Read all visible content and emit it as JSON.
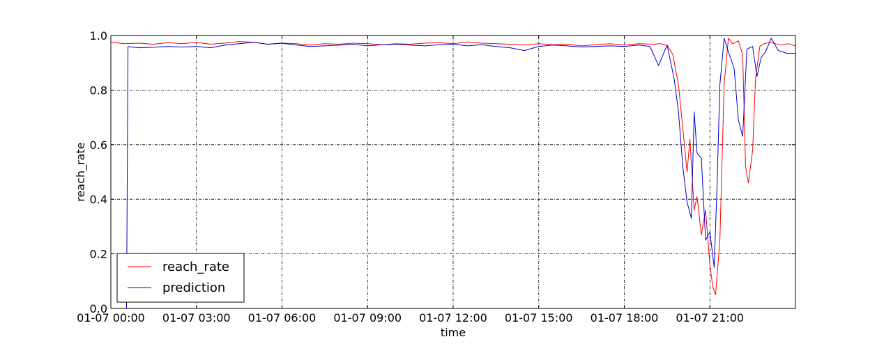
{
  "chart_data": {
    "type": "line",
    "title": "",
    "xlabel": "time",
    "ylabel": "reach_rate",
    "x_unit": "hours since 01-07 00:00",
    "xlim": [
      0,
      24
    ],
    "ylim": [
      0.0,
      1.0
    ],
    "grid": true,
    "legend_position": "lower-left",
    "x_ticks": [
      {
        "value": 0,
        "label": "01-07 00:00"
      },
      {
        "value": 3,
        "label": "01-07 03:00"
      },
      {
        "value": 6,
        "label": "01-07 06:00"
      },
      {
        "value": 9,
        "label": "01-07 09:00"
      },
      {
        "value": 12,
        "label": "01-07 12:00"
      },
      {
        "value": 15,
        "label": "01-07 15:00"
      },
      {
        "value": 18,
        "label": "01-07 18:00"
      },
      {
        "value": 21,
        "label": "01-07 21:00"
      }
    ],
    "y_ticks": [
      {
        "value": 0.0,
        "label": "0.0"
      },
      {
        "value": 0.2,
        "label": "0.2"
      },
      {
        "value": 0.4,
        "label": "0.4"
      },
      {
        "value": 0.6,
        "label": "0.6"
      },
      {
        "value": 0.8,
        "label": "0.8"
      },
      {
        "value": 1.0,
        "label": "1.0"
      }
    ],
    "series": [
      {
        "name": "reach_rate",
        "color": "#ff0000",
        "x": [
          0,
          0.5,
          1,
          1.5,
          2,
          2.5,
          3,
          3.5,
          4,
          4.5,
          5,
          5.5,
          6,
          6.5,
          7,
          7.5,
          8,
          8.5,
          9,
          9.5,
          10,
          10.5,
          11,
          11.5,
          12,
          12.5,
          13,
          13.5,
          14,
          14.5,
          15,
          15.5,
          16,
          16.5,
          17,
          17.5,
          18,
          18.5,
          19,
          19.25,
          19.5,
          19.7,
          19.9,
          20.05,
          20.2,
          20.3,
          20.45,
          20.55,
          20.7,
          20.85,
          21,
          21.1,
          21.2,
          21.35,
          21.5,
          21.65,
          21.8,
          22,
          22.15,
          22.25,
          22.35,
          22.5,
          22.6,
          22.75,
          22.9,
          23.1,
          23.3,
          23.5,
          23.75,
          24
        ],
        "values": [
          0.975,
          0.97,
          0.972,
          0.968,
          0.974,
          0.97,
          0.975,
          0.968,
          0.972,
          0.978,
          0.975,
          0.968,
          0.972,
          0.97,
          0.965,
          0.97,
          0.968,
          0.972,
          0.97,
          0.966,
          0.97,
          0.968,
          0.972,
          0.974,
          0.97,
          0.976,
          0.972,
          0.97,
          0.968,
          0.965,
          0.97,
          0.966,
          0.968,
          0.962,
          0.966,
          0.97,
          0.965,
          0.97,
          0.968,
          0.97,
          0.965,
          0.93,
          0.82,
          0.66,
          0.5,
          0.62,
          0.36,
          0.41,
          0.27,
          0.36,
          0.16,
          0.08,
          0.05,
          0.25,
          0.82,
          0.99,
          0.97,
          0.98,
          0.93,
          0.52,
          0.46,
          0.58,
          0.84,
          0.96,
          0.97,
          0.975,
          0.97,
          0.965,
          0.97,
          0.962
        ]
      },
      {
        "name": "prediction",
        "color": "#0000cc",
        "x": [
          0,
          0.55,
          0.6,
          0.7,
          1,
          1.5,
          2,
          2.5,
          3,
          3.5,
          4,
          4.5,
          5,
          5.5,
          6,
          6.5,
          7,
          7.5,
          8,
          8.5,
          9,
          9.5,
          10,
          10.5,
          11,
          11.5,
          12,
          12.5,
          13,
          13.5,
          14,
          14.5,
          15,
          15.5,
          16,
          16.5,
          17,
          17.5,
          18,
          18.5,
          18.9,
          19.2,
          19.5,
          19.75,
          19.9,
          20.05,
          20.2,
          20.35,
          20.45,
          20.55,
          20.7,
          20.85,
          21,
          21.15,
          21.25,
          21.35,
          21.5,
          21.65,
          21.85,
          22,
          22.15,
          22.3,
          22.5,
          22.65,
          22.8,
          22.95,
          23.15,
          23.4,
          23.7,
          24
        ],
        "values": [
          0.0,
          0.0,
          0.96,
          0.958,
          0.955,
          0.957,
          0.96,
          0.958,
          0.96,
          0.955,
          0.965,
          0.97,
          0.975,
          0.968,
          0.972,
          0.965,
          0.96,
          0.962,
          0.965,
          0.968,
          0.962,
          0.966,
          0.968,
          0.965,
          0.962,
          0.966,
          0.968,
          0.962,
          0.966,
          0.96,
          0.955,
          0.945,
          0.96,
          0.965,
          0.962,
          0.958,
          0.96,
          0.962,
          0.96,
          0.965,
          0.96,
          0.89,
          0.965,
          0.84,
          0.72,
          0.52,
          0.39,
          0.33,
          0.72,
          0.57,
          0.55,
          0.25,
          0.28,
          0.15,
          0.45,
          0.82,
          0.99,
          0.94,
          0.88,
          0.69,
          0.63,
          0.95,
          0.96,
          0.85,
          0.92,
          0.94,
          0.99,
          0.945,
          0.935,
          0.935
        ]
      }
    ]
  }
}
